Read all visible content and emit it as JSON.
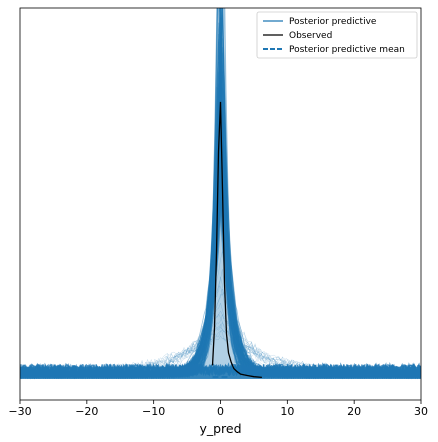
{
  "chart_data": {
    "type": "line",
    "title": "",
    "xlabel": "y_pred",
    "ylabel": "",
    "xlim": [
      -30,
      30
    ],
    "xticks": [
      -30,
      -20,
      -10,
      0,
      10,
      20,
      30
    ],
    "xtick_labels": [
      "−30",
      "−20",
      "−10",
      "0",
      "10",
      "20",
      "30"
    ],
    "yticks_visible": false,
    "grid": false,
    "legend_placement": "top-right",
    "colors": {
      "posterior_predictive": "#1f77b4",
      "observed": "#000000",
      "posterior_predictive_mean": "#1f77b4"
    },
    "series": [
      {
        "name": "Posterior predictive",
        "style": "solid",
        "description_values": {
          "x": [
            -30,
            -20,
            -10,
            -5,
            -3,
            -2,
            -1,
            -0.5,
            0,
            0.5,
            1,
            2,
            3,
            5,
            10,
            20,
            30
          ],
          "y": [
            0.004,
            0.006,
            0.01,
            0.02,
            0.04,
            0.08,
            0.18,
            0.35,
            0.55,
            0.32,
            0.16,
            0.07,
            0.035,
            0.018,
            0.009,
            0.006,
            0.004
          ]
        }
      },
      {
        "name": "Observed",
        "style": "solid",
        "x": [
          -1.2,
          -0.9,
          -0.6,
          -0.3,
          0.0,
          0.3,
          0.6,
          0.9,
          1.2,
          1.6,
          2.0,
          2.5,
          3.0,
          4.0,
          5.0,
          6.2
        ],
        "y": [
          0.02,
          0.08,
          0.2,
          0.36,
          0.44,
          0.3,
          0.15,
          0.07,
          0.04,
          0.025,
          0.015,
          0.01,
          0.006,
          0.004,
          0.002,
          0.001
        ]
      },
      {
        "name": "Posterior predictive mean",
        "style": "dashed",
        "x": [
          -1.2,
          0.0,
          1.2
        ],
        "y": [
          0.0,
          0.0,
          0.0
        ]
      }
    ],
    "legend": [
      {
        "label": "Posterior predictive",
        "style": "solid",
        "color": "#1f77b4"
      },
      {
        "label": "Observed",
        "style": "solid",
        "color": "#000000"
      },
      {
        "label": "Posterior predictive mean",
        "style": "dashed",
        "color": "#1f77b4"
      }
    ]
  }
}
